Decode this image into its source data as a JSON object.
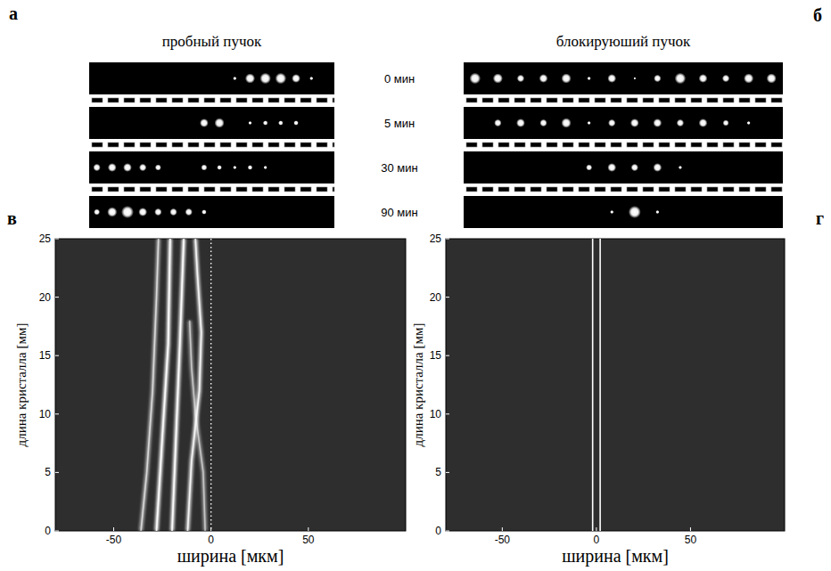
{
  "times": [
    "0 мин",
    "5 мин",
    "30 мин",
    "90 мин"
  ],
  "photos": [
    {
      "letter": "а",
      "title": "пробный пучок",
      "frames": [
        [
          0,
          0,
          0,
          0,
          0,
          0,
          0,
          0,
          0,
          0.3,
          0.8,
          0.9,
          0.9,
          0.7,
          0.3,
          0
        ],
        [
          0,
          0,
          0,
          0,
          0,
          0,
          0,
          0.7,
          0.8,
          0,
          0.3,
          0.4,
          0.4,
          0.4,
          0,
          0
        ],
        [
          0.6,
          0.7,
          0.7,
          0.6,
          0.5,
          0,
          0,
          0.5,
          0.4,
          0.3,
          0.4,
          0.3,
          0,
          0,
          0,
          0
        ],
        [
          0.5,
          0.8,
          1,
          0.7,
          0.6,
          0.6,
          0.6,
          0.4,
          0,
          0,
          0,
          0,
          0,
          0,
          0,
          0
        ]
      ]
    },
    {
      "letter": "б",
      "title": "блокируюший пучок",
      "frames": [
        [
          0.9,
          0.8,
          0.6,
          0.7,
          0.8,
          0.3,
          0.7,
          0.2,
          0.6,
          0.9,
          0.7,
          0.6,
          0.8,
          0.8
        ],
        [
          0,
          0.6,
          0.7,
          0.6,
          0.8,
          0.3,
          0.6,
          0.7,
          0.7,
          0.6,
          0.7,
          0.5,
          0.3,
          0
        ],
        [
          0,
          0,
          0,
          0,
          0,
          0.5,
          0.7,
          0.6,
          0.7,
          0.3,
          0,
          0,
          0,
          0
        ],
        [
          0,
          0,
          0,
          0,
          0,
          0,
          0.3,
          1,
          0.3,
          0,
          0,
          0,
          0,
          0
        ]
      ]
    }
  ],
  "chart_data": [
    {
      "type": "beam_map",
      "letter": "в",
      "xlabel": "ширина [мкм]",
      "ylabel": "длина кристалла [мм]",
      "xlim": [
        -80,
        100
      ],
      "ylim": [
        0,
        25
      ],
      "xticks": [
        -50,
        0,
        50
      ],
      "yticks": [
        0,
        5,
        10,
        15,
        20,
        25
      ],
      "reference_x": 0,
      "filaments": [
        {
          "points": [
            [
              -36,
              0
            ],
            [
              -33,
              5
            ],
            [
              -30,
              12
            ],
            [
              -28,
              20
            ],
            [
              -27,
              25
            ]
          ],
          "intensity": 0.6
        },
        {
          "points": [
            [
              -28,
              0
            ],
            [
              -25,
              8
            ],
            [
              -22,
              16
            ],
            [
              -21,
              25
            ]
          ],
          "intensity": 0.9
        },
        {
          "points": [
            [
              -20,
              0
            ],
            [
              -18,
              8
            ],
            [
              -16,
              16
            ],
            [
              -14,
              25
            ]
          ],
          "intensity": 0.9
        },
        {
          "points": [
            [
              -12,
              0
            ],
            [
              -10,
              6
            ],
            [
              -6,
              12
            ],
            [
              -5,
              17
            ],
            [
              -7,
              22
            ],
            [
              -8,
              25
            ]
          ],
          "intensity": 0.8
        },
        {
          "points": [
            [
              -3,
              0
            ],
            [
              -4,
              5
            ],
            [
              -8,
              10
            ],
            [
              -10,
              14
            ],
            [
              -11,
              18
            ]
          ],
          "intensity": 0.5
        }
      ]
    },
    {
      "type": "beam_map",
      "letter": "г",
      "xlabel": "ширина [мкм]",
      "ylabel": "длина кристалла [мм]",
      "xlim": [
        -80,
        100
      ],
      "ylim": [
        0,
        25
      ],
      "xticks": [
        -50,
        0,
        50
      ],
      "yticks": [
        0,
        5,
        10,
        15,
        20,
        25
      ],
      "filaments": [
        {
          "points": [
            [
              -2,
              0
            ],
            [
              -2,
              25
            ]
          ],
          "intensity": 1
        },
        {
          "points": [
            [
              2,
              0
            ],
            [
              2,
              25
            ]
          ],
          "intensity": 1
        }
      ]
    }
  ]
}
